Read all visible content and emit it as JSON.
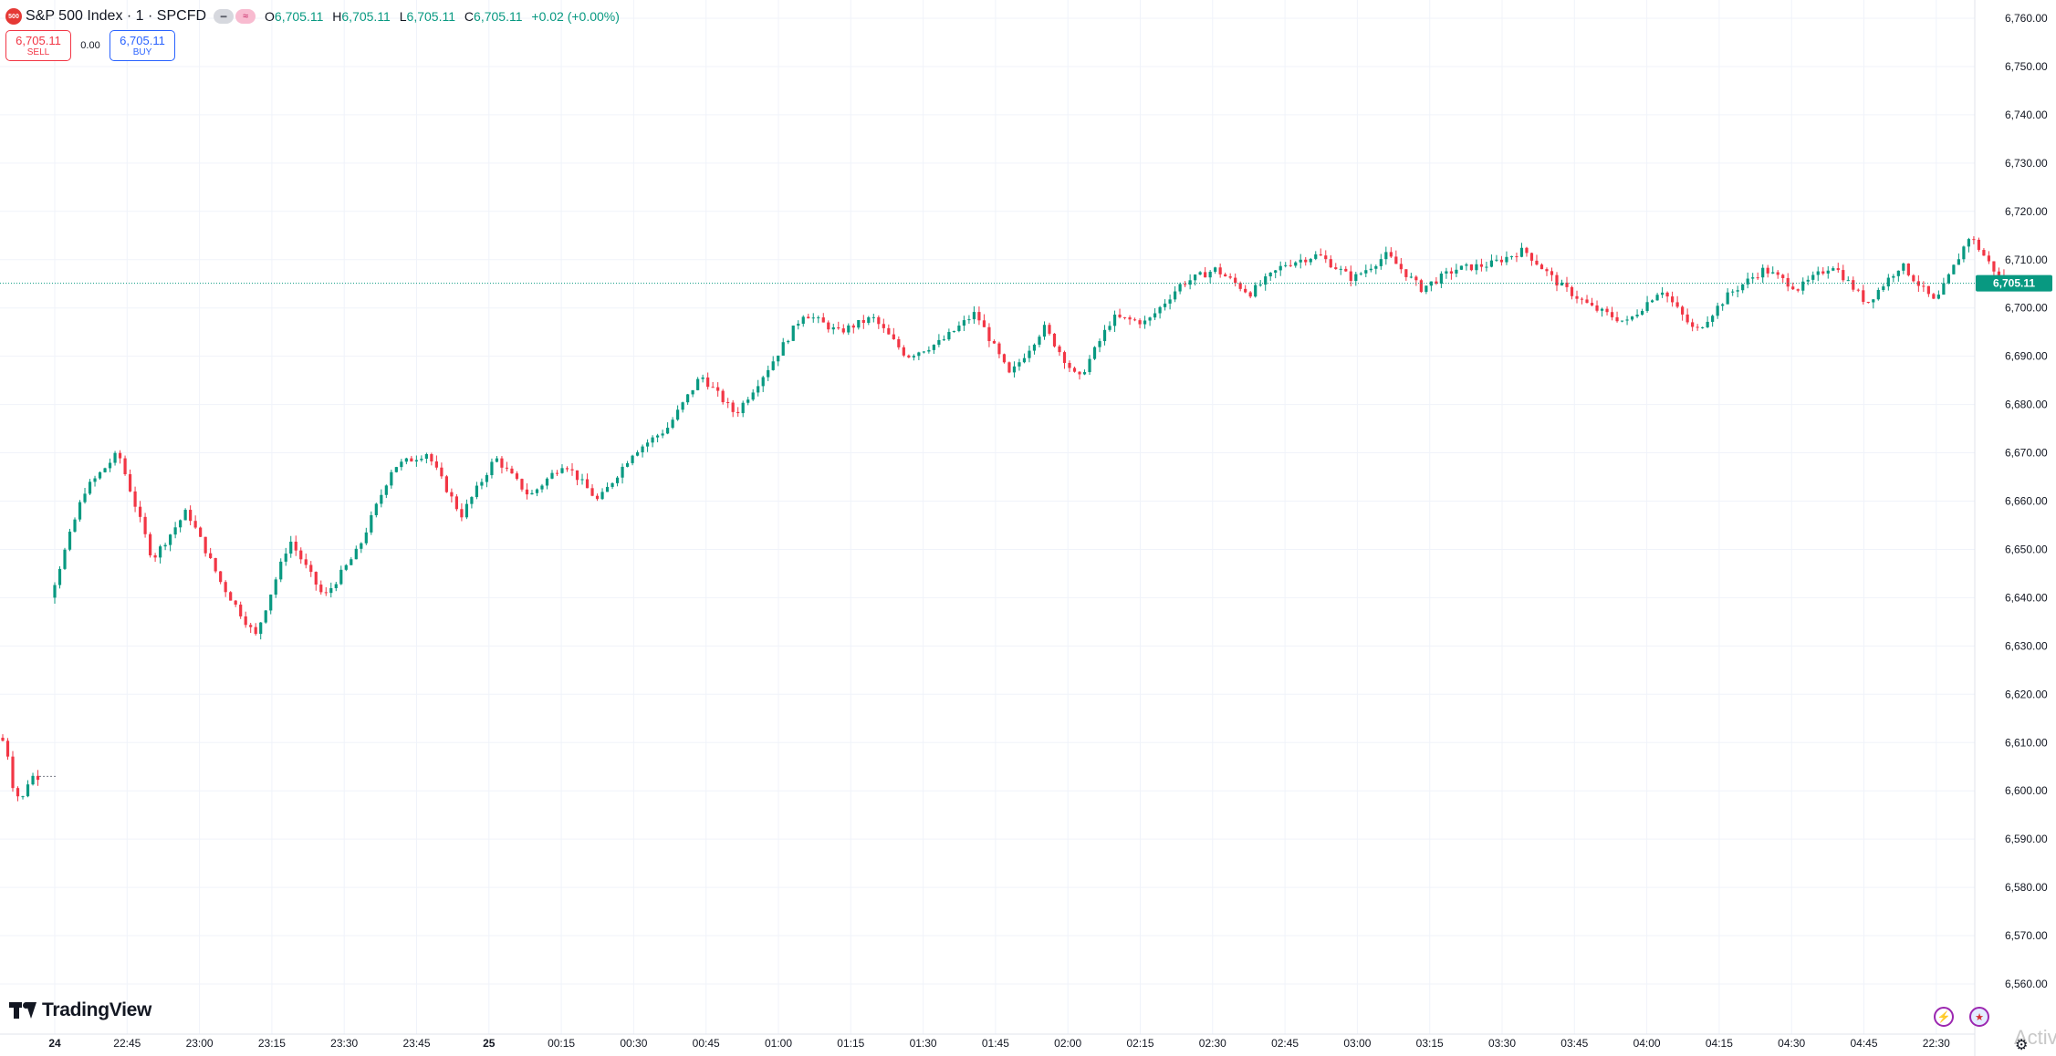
{
  "legend": {
    "badge": "500",
    "title": "S&P 500 Index · 1 · SPCFD",
    "pill_1": "━",
    "pill_2": "≈",
    "o_label": "O",
    "o_value": "6,705.11",
    "h_label": "H",
    "h_value": "6,705.11",
    "l_label": "L",
    "l_value": "6,705.11",
    "c_label": "C",
    "c_value": "6,705.11",
    "change": "+0.02 (+0.00%)"
  },
  "trade": {
    "sell_price": "6,705.11",
    "sell_label": "SELL",
    "spread": "0.00",
    "buy_price": "6,705.11",
    "buy_label": "BUY"
  },
  "branding": {
    "logo_text": "TradingView"
  },
  "icons": {
    "flash": "lightning-icon",
    "region": "us-flag-icon",
    "settings": "gear-icon"
  },
  "watermark": "Activ",
  "colors": {
    "up": "#089981",
    "down": "#f23645",
    "last_price_bg": "#089981",
    "grid": "#f0f3fa"
  },
  "chart_data": {
    "type": "candlestick",
    "symbol": "S&P 500 Index",
    "interval": "1",
    "source": "SPCFD",
    "last_price": 6705.11,
    "last_price_label": "6,705.11",
    "ylim": [
      6555,
      6765
    ],
    "y_ticks": [
      6760,
      6750,
      6740,
      6730,
      6720,
      6710,
      6700,
      6690,
      6680,
      6670,
      6660,
      6650,
      6640,
      6630,
      6620,
      6610,
      6600,
      6590,
      6580,
      6570,
      6560
    ],
    "y_tick_labels": [
      "6,760.00",
      "6,750.00",
      "6,740.00",
      "6,730.00",
      "6,720.00",
      "6,710.00",
      "6,700.00",
      "6,690.00",
      "6,680.00",
      "6,670.00",
      "6,660.00",
      "6,650.00",
      "6,640.00",
      "6,630.00",
      "6,620.00",
      "6,610.00",
      "6,600.00",
      "6,590.00",
      "6,580.00",
      "6,570.00",
      "6,560.00"
    ],
    "x_ticks": [
      {
        "label": "24",
        "bold": true
      },
      {
        "label": "22:45"
      },
      {
        "label": "23:00"
      },
      {
        "label": "23:15"
      },
      {
        "label": "23:30"
      },
      {
        "label": "23:45"
      },
      {
        "label": "25",
        "bold": true
      },
      {
        "label": "00:15"
      },
      {
        "label": "00:30"
      },
      {
        "label": "00:45"
      },
      {
        "label": "01:00"
      },
      {
        "label": "01:15"
      },
      {
        "label": "01:30"
      },
      {
        "label": "01:45"
      },
      {
        "label": "02:00"
      },
      {
        "label": "02:15"
      },
      {
        "label": "02:30"
      },
      {
        "label": "02:45"
      },
      {
        "label": "03:00"
      },
      {
        "label": "03:15"
      },
      {
        "label": "03:30"
      },
      {
        "label": "03:45"
      },
      {
        "label": "04:00"
      },
      {
        "label": "04:15"
      },
      {
        "label": "04:30"
      },
      {
        "label": "04:45"
      },
      {
        "label": "22:30"
      }
    ],
    "segments": [
      {
        "bars": 8,
        "path": [
          6611,
          6610,
          6600,
          6598,
          6603,
          6603
        ]
      },
      {
        "bars": 389,
        "path": [
          6640,
          6662,
          6670,
          6648,
          6658,
          6643,
          6632,
          6652,
          6640,
          6650,
          6667,
          6670,
          6657,
          6669,
          6661,
          6668,
          6660,
          6670,
          6675,
          6686,
          6678,
          6688,
          6699,
          6695,
          6698,
          6690,
          6693,
          6699,
          6686,
          6696,
          6685,
          6698,
          6697,
          6705,
          6708,
          6703,
          6709,
          6711,
          6706,
          6711,
          6704,
          6708,
          6709,
          6712,
          6705,
          6700,
          6697,
          6704,
          6695,
          6703,
          6708,
          6704,
          6709,
          6701,
          6709,
          6701,
          6715,
          6705
        ]
      }
    ]
  }
}
